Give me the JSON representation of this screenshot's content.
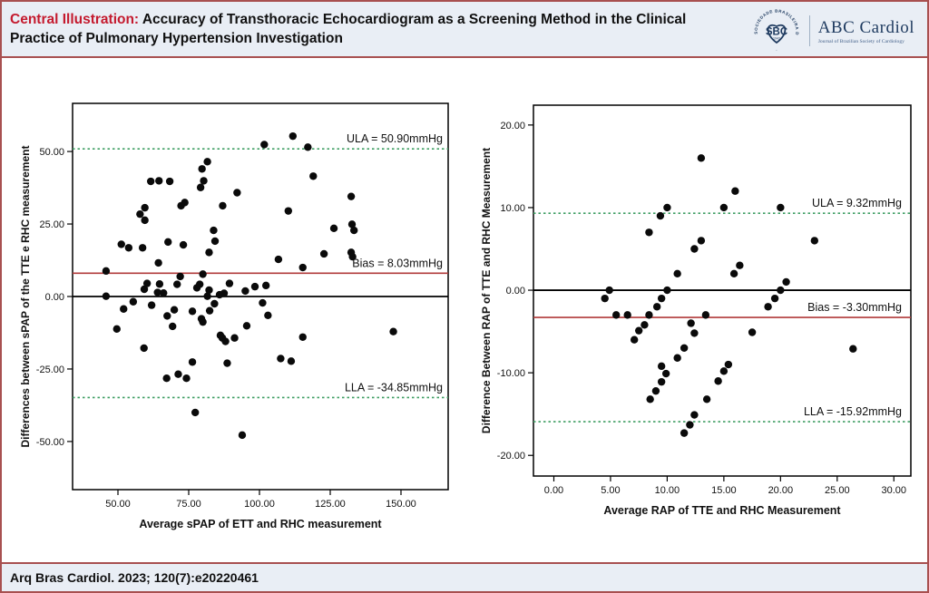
{
  "header": {
    "title_red": "Central Illustration:",
    "title_line1": " Accuracy of Transthoracic Echocardiogram as a Screening Method in the Clinical",
    "title_line2": "Practice of Pulmonary Hypertension Investigation"
  },
  "logo": {
    "ring_text": "SOCIEDADE BRASILEIRA DE CARDIOLOGIA",
    "acronym": "SBC",
    "year": "1943",
    "journal_name": "ABC Cardiol",
    "journal_tagline": "Journal of Brazilian Society of Cardiology"
  },
  "footer": {
    "citation": "Arq Bras Cardiol. 2023; 120(7):e20220461"
  },
  "colors": {
    "frame": "#a85050",
    "band_bg": "#e9eef5",
    "title_red": "#c41a2e",
    "navy": "#1e3a5f",
    "green": "#3f9e63",
    "red": "#b03a3a",
    "black": "#000000",
    "ink": "#111111"
  },
  "chart_data": [
    {
      "type": "scatter",
      "name": "Bland-Altman sPAP",
      "xlabel": "Average sPAP of ETT and RHC measurement",
      "ylabel": "Differences between sPAP of the TTE e RHC measurement",
      "xlim": [
        33.97,
        166.67
      ],
      "ylim": [
        -66.6,
        66.6
      ],
      "xticks": [
        50,
        75,
        100,
        125,
        150
      ],
      "yticks": [
        50,
        25,
        0,
        -25,
        -50
      ],
      "tick_decimals": 2,
      "grid": false,
      "label_pad": 6,
      "lines": [
        {
          "label": "ULA = 50.90mmHg",
          "value": 50.9,
          "style": "dotted",
          "color": "green"
        },
        {
          "label": "Bias = 8.03mmHg",
          "value": 8.03,
          "style": "solid",
          "color": "red"
        },
        {
          "label": "",
          "value": 0,
          "style": "solid",
          "color": "black"
        },
        {
          "label": "LLA = -34.85mmHg",
          "value": -34.85,
          "style": "dotted",
          "color": "green"
        }
      ],
      "points": [
        [
          81.6,
          46.5
        ],
        [
          79.7,
          44
        ],
        [
          61.6,
          39.7
        ],
        [
          64.5,
          39.9
        ],
        [
          68.3,
          39.7
        ],
        [
          80.3,
          39.9
        ],
        [
          79.2,
          37.6
        ],
        [
          92.1,
          35.8
        ],
        [
          73.6,
          32.4
        ],
        [
          72.3,
          31.3
        ],
        [
          87,
          31.3
        ],
        [
          59.5,
          30.6
        ],
        [
          57.8,
          28.4
        ],
        [
          59.5,
          26.3
        ],
        [
          83.8,
          22.8
        ],
        [
          67.7,
          18.8
        ],
        [
          84.3,
          19.1
        ],
        [
          51.2,
          18
        ],
        [
          53.8,
          16.8
        ],
        [
          58.7,
          16.8
        ],
        [
          73.1,
          17.8
        ],
        [
          82.2,
          15.2
        ],
        [
          64.3,
          11.6
        ],
        [
          45.8,
          8.8
        ],
        [
          72,
          6.9
        ],
        [
          80,
          7.7
        ],
        [
          101.7,
          52.4
        ],
        [
          111.8,
          55.3
        ],
        [
          117.1,
          51.5
        ],
        [
          119,
          41.5
        ],
        [
          132.4,
          34.5
        ],
        [
          110.2,
          29.5
        ],
        [
          126.3,
          23.5
        ],
        [
          132.7,
          24.9
        ],
        [
          133.4,
          22.8
        ],
        [
          106.7,
          12.8
        ],
        [
          115.3,
          10
        ],
        [
          122.8,
          14.7
        ],
        [
          132.4,
          15.2
        ],
        [
          132.9,
          13.7
        ],
        [
          45.8,
          0.1
        ],
        [
          52,
          -4.3
        ],
        [
          55.4,
          -1.8
        ],
        [
          59.3,
          2.5
        ],
        [
          60.3,
          4.5
        ],
        [
          61.9,
          -3
        ],
        [
          64.7,
          4.3
        ],
        [
          64,
          1.4
        ],
        [
          66.1,
          1.2
        ],
        [
          67.4,
          -6.7
        ],
        [
          69.9,
          -4.6
        ],
        [
          69.3,
          -10.3
        ],
        [
          49.6,
          -11.2
        ],
        [
          59.2,
          -17.8
        ],
        [
          70.9,
          4.2
        ],
        [
          76.3,
          -5.1
        ],
        [
          77.9,
          3
        ],
        [
          78.9,
          4.2
        ],
        [
          79.5,
          -7.7
        ],
        [
          80,
          -8.8
        ],
        [
          81.6,
          0.1
        ],
        [
          82.4,
          -4.9
        ],
        [
          84.1,
          -2.5
        ],
        [
          85.9,
          0.6
        ],
        [
          87.5,
          1.1
        ],
        [
          82.2,
          2.2
        ],
        [
          86.2,
          -13.4
        ],
        [
          86.9,
          -14.3
        ],
        [
          88,
          -15.5
        ],
        [
          89.4,
          4.5
        ],
        [
          91.2,
          -14.3
        ],
        [
          95,
          1.9
        ],
        [
          98.4,
          3.4
        ],
        [
          95.5,
          -10.1
        ],
        [
          93.9,
          -47.8
        ],
        [
          77.3,
          -40
        ],
        [
          76.3,
          -22.6
        ],
        [
          88.6,
          -23
        ],
        [
          67.2,
          -28.2
        ],
        [
          71.3,
          -26.8
        ],
        [
          74.2,
          -28.2
        ],
        [
          102.3,
          3.8
        ],
        [
          101.1,
          -2.2
        ],
        [
          103,
          -6.5
        ],
        [
          115.3,
          -14
        ],
        [
          107.5,
          -21.4
        ],
        [
          111.2,
          -22.3
        ],
        [
          147.3,
          -12.1
        ]
      ]
    },
    {
      "type": "scatter",
      "name": "Bland-Altman RAP",
      "xlabel": "Average RAP of TTE and RHC Measurement",
      "ylabel": "Difference Between RAP of TTE and RHC Measurement",
      "xlim": [
        -1.8,
        31.5
      ],
      "ylim": [
        -22.5,
        22.4
      ],
      "xticks": [
        0,
        5,
        10,
        15,
        20,
        25,
        30
      ],
      "yticks": [
        20,
        10,
        0,
        -10,
        -20
      ],
      "tick_decimals": 2,
      "grid": false,
      "label_pad": 10,
      "lines": [
        {
          "label": "ULA = 9.32mmHg",
          "value": 9.32,
          "style": "dotted",
          "color": "green"
        },
        {
          "label": "Bias = -3.30mmHg",
          "value": -3.3,
          "style": "solid",
          "color": "red"
        },
        {
          "label": "",
          "value": 0,
          "style": "solid",
          "color": "black"
        },
        {
          "label": "LLA = -15.92mmHg",
          "value": -15.92,
          "style": "dotted",
          "color": "green"
        }
      ],
      "points": [
        [
          13,
          16
        ],
        [
          16,
          12
        ],
        [
          10,
          10
        ],
        [
          15,
          10
        ],
        [
          20,
          10
        ],
        [
          9.4,
          9
        ],
        [
          8.4,
          7
        ],
        [
          23,
          6
        ],
        [
          13,
          6
        ],
        [
          12.4,
          5
        ],
        [
          16.4,
          3
        ],
        [
          15.9,
          2
        ],
        [
          10.9,
          2
        ],
        [
          4.9,
          0
        ],
        [
          10,
          0
        ],
        [
          4.5,
          -1
        ],
        [
          9.5,
          -1
        ],
        [
          19.5,
          -1
        ],
        [
          18.9,
          -2
        ],
        [
          20,
          0
        ],
        [
          20.5,
          1
        ],
        [
          9.1,
          -2
        ],
        [
          8.4,
          -3
        ],
        [
          5.5,
          -3
        ],
        [
          6.5,
          -3
        ],
        [
          8,
          -4.2
        ],
        [
          7.5,
          -4.9
        ],
        [
          7.1,
          -6
        ],
        [
          12.1,
          -4
        ],
        [
          12.4,
          -5.2
        ],
        [
          13.4,
          -3
        ],
        [
          17.5,
          -5.1
        ],
        [
          26.4,
          -7.1
        ],
        [
          11.5,
          -7
        ],
        [
          10.9,
          -8.2
        ],
        [
          9.5,
          -9.2
        ],
        [
          9.9,
          -10.1
        ],
        [
          9.5,
          -11.1
        ],
        [
          9,
          -12.2
        ],
        [
          8.5,
          -13.2
        ],
        [
          15.4,
          -9
        ],
        [
          15,
          -9.8
        ],
        [
          14.5,
          -11
        ],
        [
          13.5,
          -13.2
        ],
        [
          12.4,
          -15.1
        ],
        [
          12,
          -16.3
        ],
        [
          11.5,
          -17.3
        ]
      ]
    }
  ]
}
